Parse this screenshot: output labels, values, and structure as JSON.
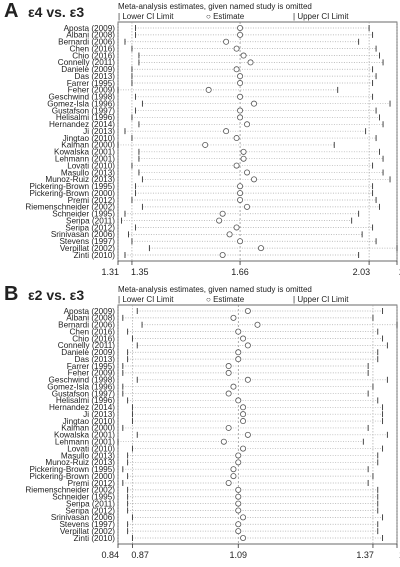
{
  "panels": [
    {
      "letter": "A",
      "subtitle": "ε4  vs.  ε3",
      "title": "Meta-analysis estimates, given named study is omitted",
      "legend": {
        "lower": "Lower CI Limit",
        "estimate": "Estimate",
        "upper": "Upper CI Limit"
      }
    },
    {
      "letter": "B",
      "subtitle": "ε2  vs.  ε3",
      "title": "Meta-analysis estimates, given named study is omitted",
      "legend": {
        "lower": "Lower CI Limit",
        "estimate": "Estimate",
        "upper": "Upper CI Limit"
      }
    }
  ],
  "chart_data": [
    {
      "type": "scatter",
      "title": "Meta-analysis estimates, given named study is omitted",
      "xlim": [
        1.31,
        2.11
      ],
      "xticks": [
        1.31,
        1.35,
        1.66,
        2.03,
        2.11
      ],
      "xtick_labels": [
        "1.31",
        "1.35",
        "1.66",
        "2.03",
        "2.11"
      ],
      "studies": [
        "Aposta (2009)",
        "Albani (2008)",
        "Bernardi (2006)",
        "Chen (2016)",
        "Chio (2016)",
        "Connelly (2011)",
        "Daniele (2009)",
        "Das (2013)",
        "Farrer (1995)",
        "Feher (2009)",
        "Geschwind (1998)",
        "Gomez-Isla (1996)",
        "Gustafson (1997)",
        "Helisalmi (1996)",
        "Hernandez (2014)",
        "Ji (2013)",
        "Jingtao (2010)",
        "Kalman (2000)",
        "Kowalska (2001)",
        "Lehmann (2001)",
        "Lovati (2010)",
        "Masullo (2013)",
        "Munoz-Ruiz (2013)",
        "Pickering-Brown (1995)",
        "Pickering-Brown (2000)",
        "Premi (2012)",
        "Riemenschneider (2002)",
        "Schneider (1995)",
        "Seripa (2011)",
        "Seripa (2012)",
        "Srinivasan (2006)",
        "Stevens (1997)",
        "Verpillat (2002)",
        "Zinti (2010)"
      ],
      "estimate": [
        1.66,
        1.66,
        1.62,
        1.65,
        1.67,
        1.69,
        1.65,
        1.66,
        1.66,
        1.57,
        1.66,
        1.7,
        1.66,
        1.66,
        1.68,
        1.62,
        1.65,
        1.56,
        1.67,
        1.67,
        1.65,
        1.68,
        1.7,
        1.66,
        1.66,
        1.66,
        1.68,
        1.61,
        1.6,
        1.65,
        1.63,
        1.66,
        1.72,
        1.61
      ],
      "lower": [
        1.36,
        1.36,
        1.33,
        1.35,
        1.37,
        1.37,
        1.35,
        1.35,
        1.35,
        1.31,
        1.36,
        1.38,
        1.36,
        1.35,
        1.37,
        1.33,
        1.35,
        1.31,
        1.37,
        1.37,
        1.35,
        1.37,
        1.38,
        1.36,
        1.36,
        1.35,
        1.38,
        1.33,
        1.32,
        1.36,
        1.34,
        1.35,
        1.4,
        1.33
      ],
      "upper": [
        2.03,
        2.04,
        2.0,
        2.05,
        2.06,
        2.07,
        2.04,
        2.05,
        2.04,
        1.94,
        2.04,
        2.09,
        2.05,
        2.06,
        2.07,
        2.02,
        2.05,
        1.93,
        2.06,
        2.07,
        2.04,
        2.07,
        2.09,
        2.04,
        2.04,
        2.05,
        2.06,
        2.0,
        1.98,
        2.04,
        2.01,
        2.05,
        2.11,
        2.0
      ]
    },
    {
      "type": "scatter",
      "title": "Meta-analysis estimates, given named study is omitted",
      "xlim": [
        0.84,
        1.42
      ],
      "xticks": [
        0.84,
        0.87,
        1.09,
        1.37,
        1.42
      ],
      "xtick_labels": [
        "0.84",
        "0.87",
        "1.09",
        "1.37",
        "1.42"
      ],
      "studies": [
        "Aposta (2009)",
        "Albani (2008)",
        "Bernardi (2006)",
        "Chen (2016)",
        "Chio (2016)",
        "Connelly (2011)",
        "Daniele (2009)",
        "Das (2013)",
        "Farrer (1995)",
        "Feher (2009)",
        "Geschwind (1998)",
        "Gomez-Isla (1996)",
        "Gustafson (1997)",
        "Helisalmi (1996)",
        "Hernandez (2014)",
        "Ji (2013)",
        "Jingtao (2010)",
        "Kalman (2000)",
        "Kowalska (2001)",
        "Lehmann (2001)",
        "Lovati (2010)",
        "Masullo (2013)",
        "Munoz-Ruiz (2013)",
        "Pickering-Brown (1995)",
        "Pickering-Brown (2000)",
        "Premi (2012)",
        "Riemenschneider (2002)",
        "Schneider (1995)",
        "Seripa (2011)",
        "Seripa (2012)",
        "Srinivasan (2006)",
        "Stevens (1997)",
        "Verpillat (2002)",
        "Zinti (2010)"
      ],
      "estimate": [
        1.11,
        1.08,
        1.13,
        1.09,
        1.1,
        1.11,
        1.09,
        1.09,
        1.07,
        1.07,
        1.11,
        1.08,
        1.07,
        1.09,
        1.1,
        1.1,
        1.1,
        1.07,
        1.11,
        1.06,
        1.1,
        1.09,
        1.09,
        1.08,
        1.08,
        1.07,
        1.09,
        1.09,
        1.09,
        1.09,
        1.1,
        1.09,
        1.09,
        1.1
      ],
      "lower": [
        0.88,
        0.85,
        0.89,
        0.86,
        0.87,
        0.88,
        0.86,
        0.86,
        0.85,
        0.85,
        0.88,
        0.85,
        0.85,
        0.86,
        0.87,
        0.87,
        0.87,
        0.85,
        0.88,
        0.84,
        0.87,
        0.86,
        0.86,
        0.85,
        0.86,
        0.85,
        0.86,
        0.86,
        0.86,
        0.86,
        0.87,
        0.86,
        0.86,
        0.87
      ],
      "upper": [
        1.39,
        1.37,
        1.42,
        1.38,
        1.39,
        1.4,
        1.38,
        1.38,
        1.36,
        1.36,
        1.4,
        1.37,
        1.36,
        1.38,
        1.39,
        1.39,
        1.39,
        1.36,
        1.4,
        1.35,
        1.39,
        1.38,
        1.38,
        1.36,
        1.37,
        1.36,
        1.38,
        1.38,
        1.38,
        1.38,
        1.39,
        1.38,
        1.38,
        1.39
      ]
    }
  ]
}
